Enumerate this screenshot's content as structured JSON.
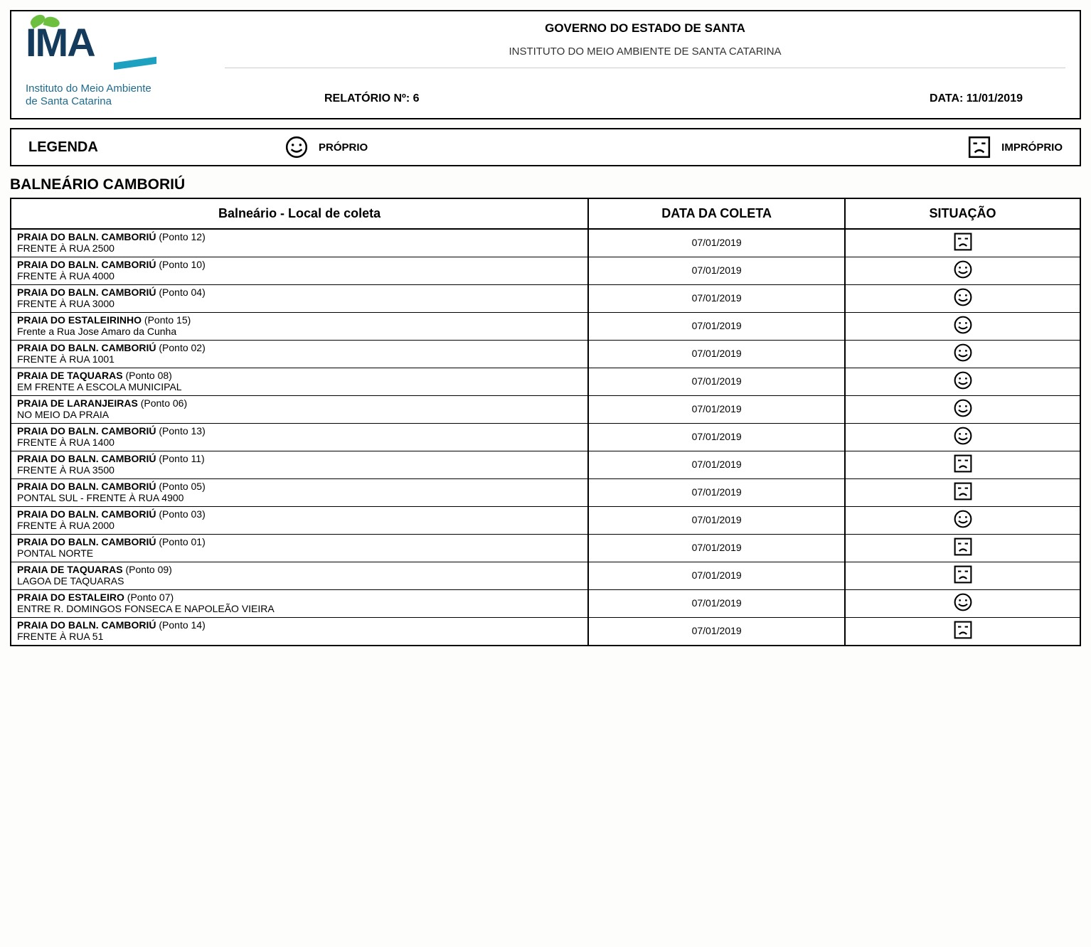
{
  "header": {
    "logo_name": "IMA",
    "logo_sub_line1": "Instituto do Meio Ambiente",
    "logo_sub_line2": "de Santa Catarina",
    "gov_title": "GOVERNO DO ESTADO DE SANTA",
    "institute_title": "INSTITUTO DO MEIO AMBIENTE DE SANTA CATARINA",
    "report_label": "RELATÓRIO Nº: 6",
    "date_label": "DATA: 11/01/2019"
  },
  "legend": {
    "title": "LEGENDA",
    "proper": "PRÓPRIO",
    "improper": "IMPRÓPRIO"
  },
  "section": {
    "title": "BALNEÁRIO CAMBORIÚ"
  },
  "columns": {
    "location": "Balneário - Local de coleta",
    "date": "DATA DA COLETA",
    "status": "SITUAÇÃO"
  },
  "rows": [
    {
      "name": "PRAIA DO BALN. CAMBORIÚ",
      "point": "(Ponto 12)",
      "detail": "FRENTE À RUA 2500",
      "date": "07/01/2019",
      "status": "improper"
    },
    {
      "name": "PRAIA DO BALN. CAMBORIÚ",
      "point": "(Ponto 10)",
      "detail": "FRENTE À RUA 4000",
      "date": "07/01/2019",
      "status": "proper"
    },
    {
      "name": "PRAIA DO BALN. CAMBORIÚ",
      "point": "(Ponto 04)",
      "detail": "FRENTE À RUA 3000",
      "date": "07/01/2019",
      "status": "proper"
    },
    {
      "name": "PRAIA DO ESTALEIRINHO",
      "point": "(Ponto 15)",
      "detail": "Frente a Rua Jose Amaro da Cunha",
      "date": "07/01/2019",
      "status": "proper"
    },
    {
      "name": "PRAIA DO BALN. CAMBORIÚ",
      "point": "(Ponto 02)",
      "detail": "FRENTE À RUA 1001",
      "date": "07/01/2019",
      "status": "proper"
    },
    {
      "name": "PRAIA DE TAQUARAS",
      "point": "(Ponto 08)",
      "detail": "EM FRENTE A ESCOLA MUNICIPAL",
      "date": "07/01/2019",
      "status": "proper"
    },
    {
      "name": "PRAIA DE LARANJEIRAS",
      "point": "(Ponto 06)",
      "detail": "NO MEIO DA PRAIA",
      "date": "07/01/2019",
      "status": "proper"
    },
    {
      "name": "PRAIA DO BALN. CAMBORIÚ",
      "point": "(Ponto 13)",
      "detail": "FRENTE À RUA 1400",
      "date": "07/01/2019",
      "status": "proper"
    },
    {
      "name": "PRAIA DO BALN. CAMBORIÚ",
      "point": "(Ponto 11)",
      "detail": "FRENTE À RUA 3500",
      "date": "07/01/2019",
      "status": "improper"
    },
    {
      "name": "PRAIA DO BALN. CAMBORIÚ",
      "point": "(Ponto 05)",
      "detail": "PONTAL SUL - FRENTE À RUA 4900",
      "date": "07/01/2019",
      "status": "improper"
    },
    {
      "name": "PRAIA DO BALN. CAMBORIÚ",
      "point": "(Ponto 03)",
      "detail": "FRENTE À RUA 2000",
      "date": "07/01/2019",
      "status": "proper"
    },
    {
      "name": "PRAIA DO BALN. CAMBORIÚ",
      "point": "(Ponto 01)",
      "detail": "PONTAL NORTE",
      "date": "07/01/2019",
      "status": "improper"
    },
    {
      "name": "PRAIA DE TAQUARAS",
      "point": "(Ponto 09)",
      "detail": "LAGOA DE TAQUARAS",
      "date": "07/01/2019",
      "status": "improper"
    },
    {
      "name": "PRAIA DO ESTALEIRO",
      "point": "(Ponto 07)",
      "detail": "ENTRE R. DOMINGOS FONSECA E NAPOLEÃO VIEIRA",
      "date": "07/01/2019",
      "status": "proper"
    },
    {
      "name": "PRAIA DO BALN. CAMBORIÚ",
      "point": "(Ponto 14)",
      "detail": "FRENTE À RUA 51",
      "date": "07/01/2019",
      "status": "improper"
    }
  ],
  "colors": {
    "logo_text": "#153b5c",
    "logo_sub": "#1d6a8f",
    "leaf": "#6cbf3f",
    "swish": "#1ea1c1",
    "border": "#000000",
    "background": "#fdfdfb"
  }
}
